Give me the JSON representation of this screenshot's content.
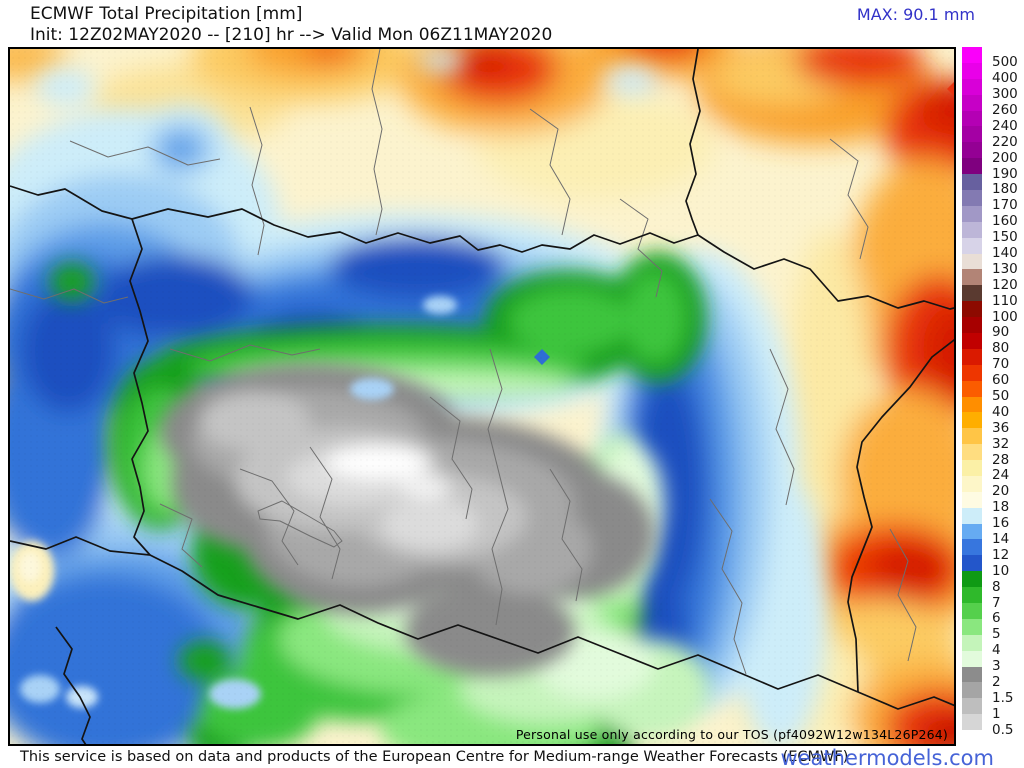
{
  "header": {
    "title": "ECMWF Total Precipitation [mm]",
    "init_line": "Init: 12Z02MAY2020 -- [210] hr --> Valid Mon 06Z11MAY2020",
    "max_label": "MAX: 90.1 mm"
  },
  "map": {
    "watermark": "Personal use only according to our TOS (pf4092W12w134L26P264)"
  },
  "legend": {
    "unit": "mm",
    "labels": [
      "500",
      "400",
      "300",
      "260",
      "240",
      "220",
      "200",
      "190",
      "180",
      "170",
      "160",
      "150",
      "140",
      "130",
      "120",
      "110",
      "100",
      "90",
      "80",
      "70",
      "60",
      "50",
      "40",
      "36",
      "32",
      "28",
      "24",
      "20",
      "18",
      "16",
      "14",
      "12",
      "10",
      "8",
      "7",
      "6",
      "5",
      "4",
      "3",
      "2",
      "1.5",
      "1",
      "0.5"
    ],
    "segment_colors": [
      "#FA00FA",
      "#E900E9",
      "#D800D8",
      "#C600C6",
      "#B400B4",
      "#A400A4",
      "#940094",
      "#7F007F",
      "#67609F",
      "#837AB2",
      "#A198C6",
      "#BDB6D8",
      "#D7D3E8",
      "#E9DED6",
      "#B28476",
      "#5A3A30",
      "#8D0A00",
      "#A70000",
      "#C10000",
      "#DA1A00",
      "#EE3600",
      "#FB5C00",
      "#FF8E00",
      "#FFAE00",
      "#FFC546",
      "#FFDD80",
      "#FBF0A6",
      "#FDF6C8",
      "#FEFBE2",
      "#CDEDF9",
      "#66ABF2",
      "#3776DE",
      "#2356CA",
      "#0F9A14",
      "#2FB92B",
      "#55D04C",
      "#8AE77F",
      "#C4F4BA",
      "#E2FBDC",
      "#8C8C8C",
      "#A5A5A5",
      "#BEBEBE",
      "#D6D6D6",
      "#FFFFFF"
    ]
  },
  "footer": {
    "attribution": "This service is based on data and products of the European Centre for Medium-range Weather Forecasts (ECMWF)",
    "brand": "weathermodels.com"
  },
  "colors": {
    "max_text": "#3232C8",
    "brand_text": "#4663D7",
    "map_background": "#FCF3CE"
  }
}
